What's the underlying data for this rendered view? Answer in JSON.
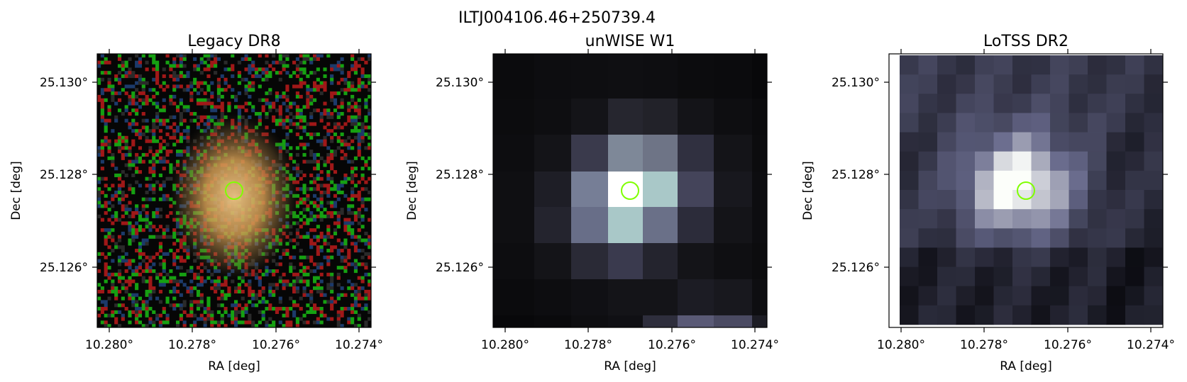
{
  "figure": {
    "source_name": "ILTJ004106.46+250739.4"
  },
  "panels": [
    {
      "title": "Legacy DR8",
      "xlabel": "RA [deg]",
      "ylabel": "Dec [deg]",
      "x_ticks": [
        "10.280°",
        "10.278°",
        "10.276°",
        "10.274°"
      ],
      "y_ticks": [
        "25.130°",
        "25.128°",
        "25.126°"
      ],
      "image_kind": "optical-color-noise-with-galaxy",
      "marker_color": "#7fff00"
    },
    {
      "title": "unWISE W1",
      "xlabel": "RA [deg]",
      "ylabel": "Dec [deg]",
      "x_ticks": [
        "10.280°",
        "10.278°",
        "10.276°",
        "10.274°"
      ],
      "y_ticks": [
        "25.130°",
        "25.128°",
        "25.126°"
      ],
      "image_kind": "infrared-pixelated-source",
      "marker_color": "#7fff00"
    },
    {
      "title": "LoTSS DR2",
      "xlabel": "RA [deg]",
      "ylabel": "Dec [deg]",
      "x_ticks": [
        "10.280°",
        "10.278°",
        "10.276°",
        "10.274°"
      ],
      "y_ticks": [
        "25.130°",
        "25.128°",
        "25.126°"
      ],
      "image_kind": "radio-pixelated-source",
      "marker_color": "#7fff00"
    }
  ],
  "colors": {
    "marker": "#7fff00",
    "frame": "#000000"
  }
}
